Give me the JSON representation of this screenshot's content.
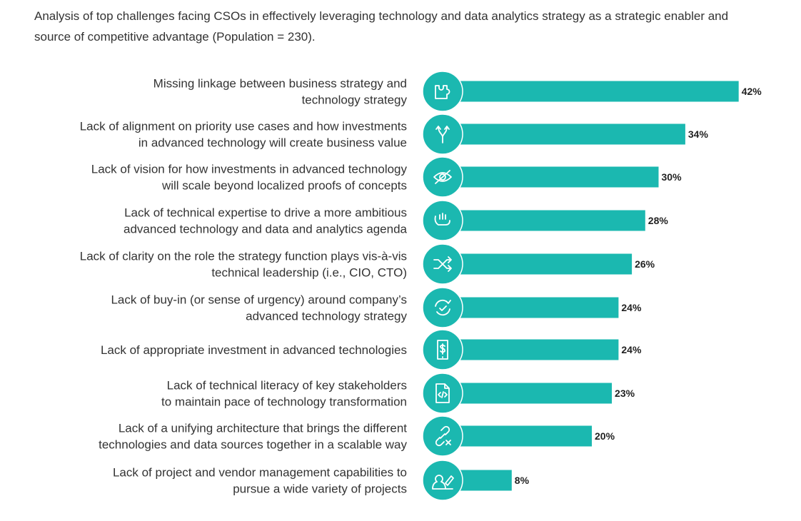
{
  "chart_data": {
    "type": "bar",
    "orientation": "horizontal",
    "title": "Analysis of top challenges facing CSOs in effectively leveraging technology and data analytics strategy as a strategic enabler and source of competitive advantage (Population = 230).",
    "categories": [
      [
        "Missing linkage between business strategy and",
        "technology strategy"
      ],
      [
        "Lack of alignment on priority use cases and how investments",
        "in advanced technology will create business value"
      ],
      [
        "Lack of vision for how investments in advanced technology",
        "will scale beyond localized proofs of concepts"
      ],
      [
        "Lack of technical expertise to drive a more ambitious",
        "advanced technology and data and analytics agenda"
      ],
      [
        "Lack of clarity on the role the strategy function plays vis-à-vis",
        "technical leadership (i.e., CIO, CTO)"
      ],
      [
        "Lack of buy-in (or sense of urgency) around company’s",
        "advanced technology strategy"
      ],
      [
        "Lack of appropriate investment in advanced technologies"
      ],
      [
        "Lack of technical literacy of key stakeholders",
        "to maintain pace of technology transformation"
      ],
      [
        "Lack of a unifying architecture that brings the different",
        "technologies and data sources together in a scalable way"
      ],
      [
        "Lack of project and vendor management capabilities to",
        "pursue a wide variety of projects"
      ]
    ],
    "values": [
      42,
      34,
      30,
      28,
      26,
      24,
      24,
      23,
      20,
      8
    ],
    "value_labels": [
      "42%",
      "34%",
      "30%",
      "28%",
      "26%",
      "24%",
      "24%",
      "23%",
      "20%",
      "8%"
    ],
    "icons": [
      "puzzle-icon",
      "split-arrows-icon",
      "eye-slash-icon",
      "hand-icon",
      "shuffle-icon",
      "refresh-check-icon",
      "phone-dollar-icon",
      "code-file-icon",
      "broken-link-icon",
      "person-pen-icon"
    ],
    "bar_color": "#1bb8b0",
    "grid": false
  }
}
